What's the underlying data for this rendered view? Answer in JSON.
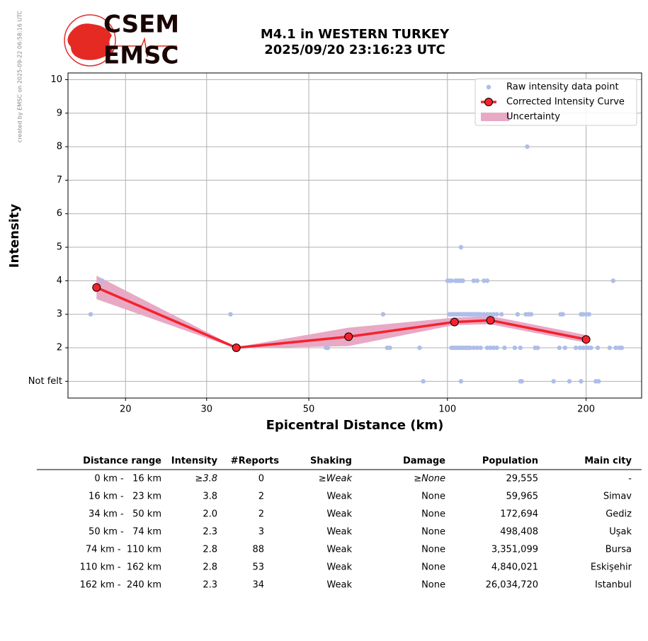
{
  "logo": {
    "top": "CSEM",
    "bottom": "EMSC"
  },
  "credit": "created by EMSC on 2025-09-22 06:58:16 UTC",
  "chart_data": {
    "type": "line",
    "title": [
      "M4.1 in WESTERN TURKEY",
      "2025/09/20 23:16:23 UTC"
    ],
    "x_label": "Epicentral Distance (km)",
    "y_label": "Intensity",
    "xscale": "log",
    "xlim": [
      15,
      264
    ],
    "ylim": [
      0.5,
      10.2
    ],
    "xticks": [
      20,
      30,
      50,
      100,
      200
    ],
    "yticks": [
      {
        "value": 1,
        "label": "Not felt"
      },
      2,
      3,
      4,
      5,
      6,
      7,
      8,
      9,
      10
    ],
    "grid": true,
    "legend": "upper right",
    "series": [
      {
        "name": "Raw intensity data point",
        "type": "scatter",
        "color": "#aebde9",
        "x": [
          16.8,
          17.8,
          33.8,
          54.5,
          55,
          72.5,
          74,
          75,
          87,
          88.6,
          100,
          101,
          102,
          104,
          105,
          106,
          107,
          108,
          114,
          116,
          120,
          122,
          229,
          107,
          149,
          101,
          102,
          103,
          104,
          105,
          106,
          107,
          108,
          109,
          110,
          111,
          112,
          113,
          114,
          115,
          116,
          117,
          118,
          120,
          122,
          124,
          126,
          128,
          131,
          142,
          148,
          150,
          152,
          176,
          178,
          195,
          197,
          200,
          203,
          102,
          103,
          104,
          105,
          106,
          107,
          108,
          109,
          110,
          111,
          112,
          114,
          116,
          118,
          122,
          124,
          126,
          128,
          133,
          140,
          144,
          155,
          157,
          175,
          180,
          190,
          194,
          197,
          200,
          202,
          205,
          212,
          225,
          232,
          236,
          239,
          107,
          144,
          145,
          170,
          184,
          195,
          210,
          213
        ],
        "values": [
          3,
          4,
          3,
          2,
          2,
          3,
          2,
          2,
          2,
          1,
          4,
          4,
          4,
          4,
          4,
          4,
          4,
          4,
          4,
          4,
          4,
          4,
          4,
          5,
          8,
          3,
          3,
          3,
          3,
          3,
          3,
          3,
          3,
          3,
          3,
          3,
          3,
          3,
          3,
          3,
          3,
          3,
          3,
          3,
          3,
          3,
          3,
          3,
          3,
          3,
          3,
          3,
          3,
          3,
          3,
          3,
          3,
          3,
          3,
          2,
          2,
          2,
          2,
          2,
          2,
          2,
          2,
          2,
          2,
          2,
          2,
          2,
          2,
          2,
          2,
          2,
          2,
          2,
          2,
          2,
          2,
          2,
          2,
          2,
          2,
          2,
          2,
          2,
          2,
          2,
          2,
          2,
          2,
          2,
          2,
          1,
          1,
          1,
          1,
          1,
          1,
          1,
          1
        ]
      },
      {
        "name": "Corrected Intensity Curve",
        "type": "line",
        "color": "#f5222d",
        "x": [
          17.3,
          34.8,
          61,
          103.6,
          124,
          200
        ],
        "values": [
          3.8,
          2.0,
          2.33,
          2.77,
          2.82,
          2.25
        ]
      },
      {
        "name": "Uncertainty",
        "type": "band",
        "color": "#e8a9c5",
        "x": [
          17.3,
          34.8,
          61,
          103.6,
          124,
          200
        ],
        "upper": [
          4.15,
          2.02,
          2.6,
          2.9,
          2.95,
          2.38
        ],
        "lower": [
          3.45,
          1.98,
          2.05,
          2.68,
          2.7,
          2.15
        ]
      }
    ]
  },
  "table": {
    "columns": [
      "Distance range",
      "Intensity",
      "#Reports",
      "Shaking",
      "Damage",
      "Population",
      "Main city"
    ],
    "rows": [
      [
        "0 km -   16 km",
        "≥3.8",
        "0",
        "≥Weak",
        "≥None",
        "29,555",
        "-"
      ],
      [
        "16 km -   23 km",
        "3.8",
        "2",
        "Weak",
        "None",
        "59,965",
        "Simav"
      ],
      [
        "34 km -   50 km",
        "2.0",
        "2",
        "Weak",
        "None",
        "172,694",
        "Gediz"
      ],
      [
        "50 km -   74 km",
        "2.3",
        "3",
        "Weak",
        "None",
        "498,408",
        "Uşak"
      ],
      [
        "74 km -  110 km",
        "2.8",
        "88",
        "Weak",
        "None",
        "3,351,099",
        "Bursa"
      ],
      [
        "110 km -  162 km",
        "2.8",
        "53",
        "Weak",
        "None",
        "4,840,021",
        "Eskişehir"
      ],
      [
        "162 km -  240 km",
        "2.3",
        "34",
        "Weak",
        "None",
        "26,034,720",
        "Istanbul"
      ]
    ]
  }
}
